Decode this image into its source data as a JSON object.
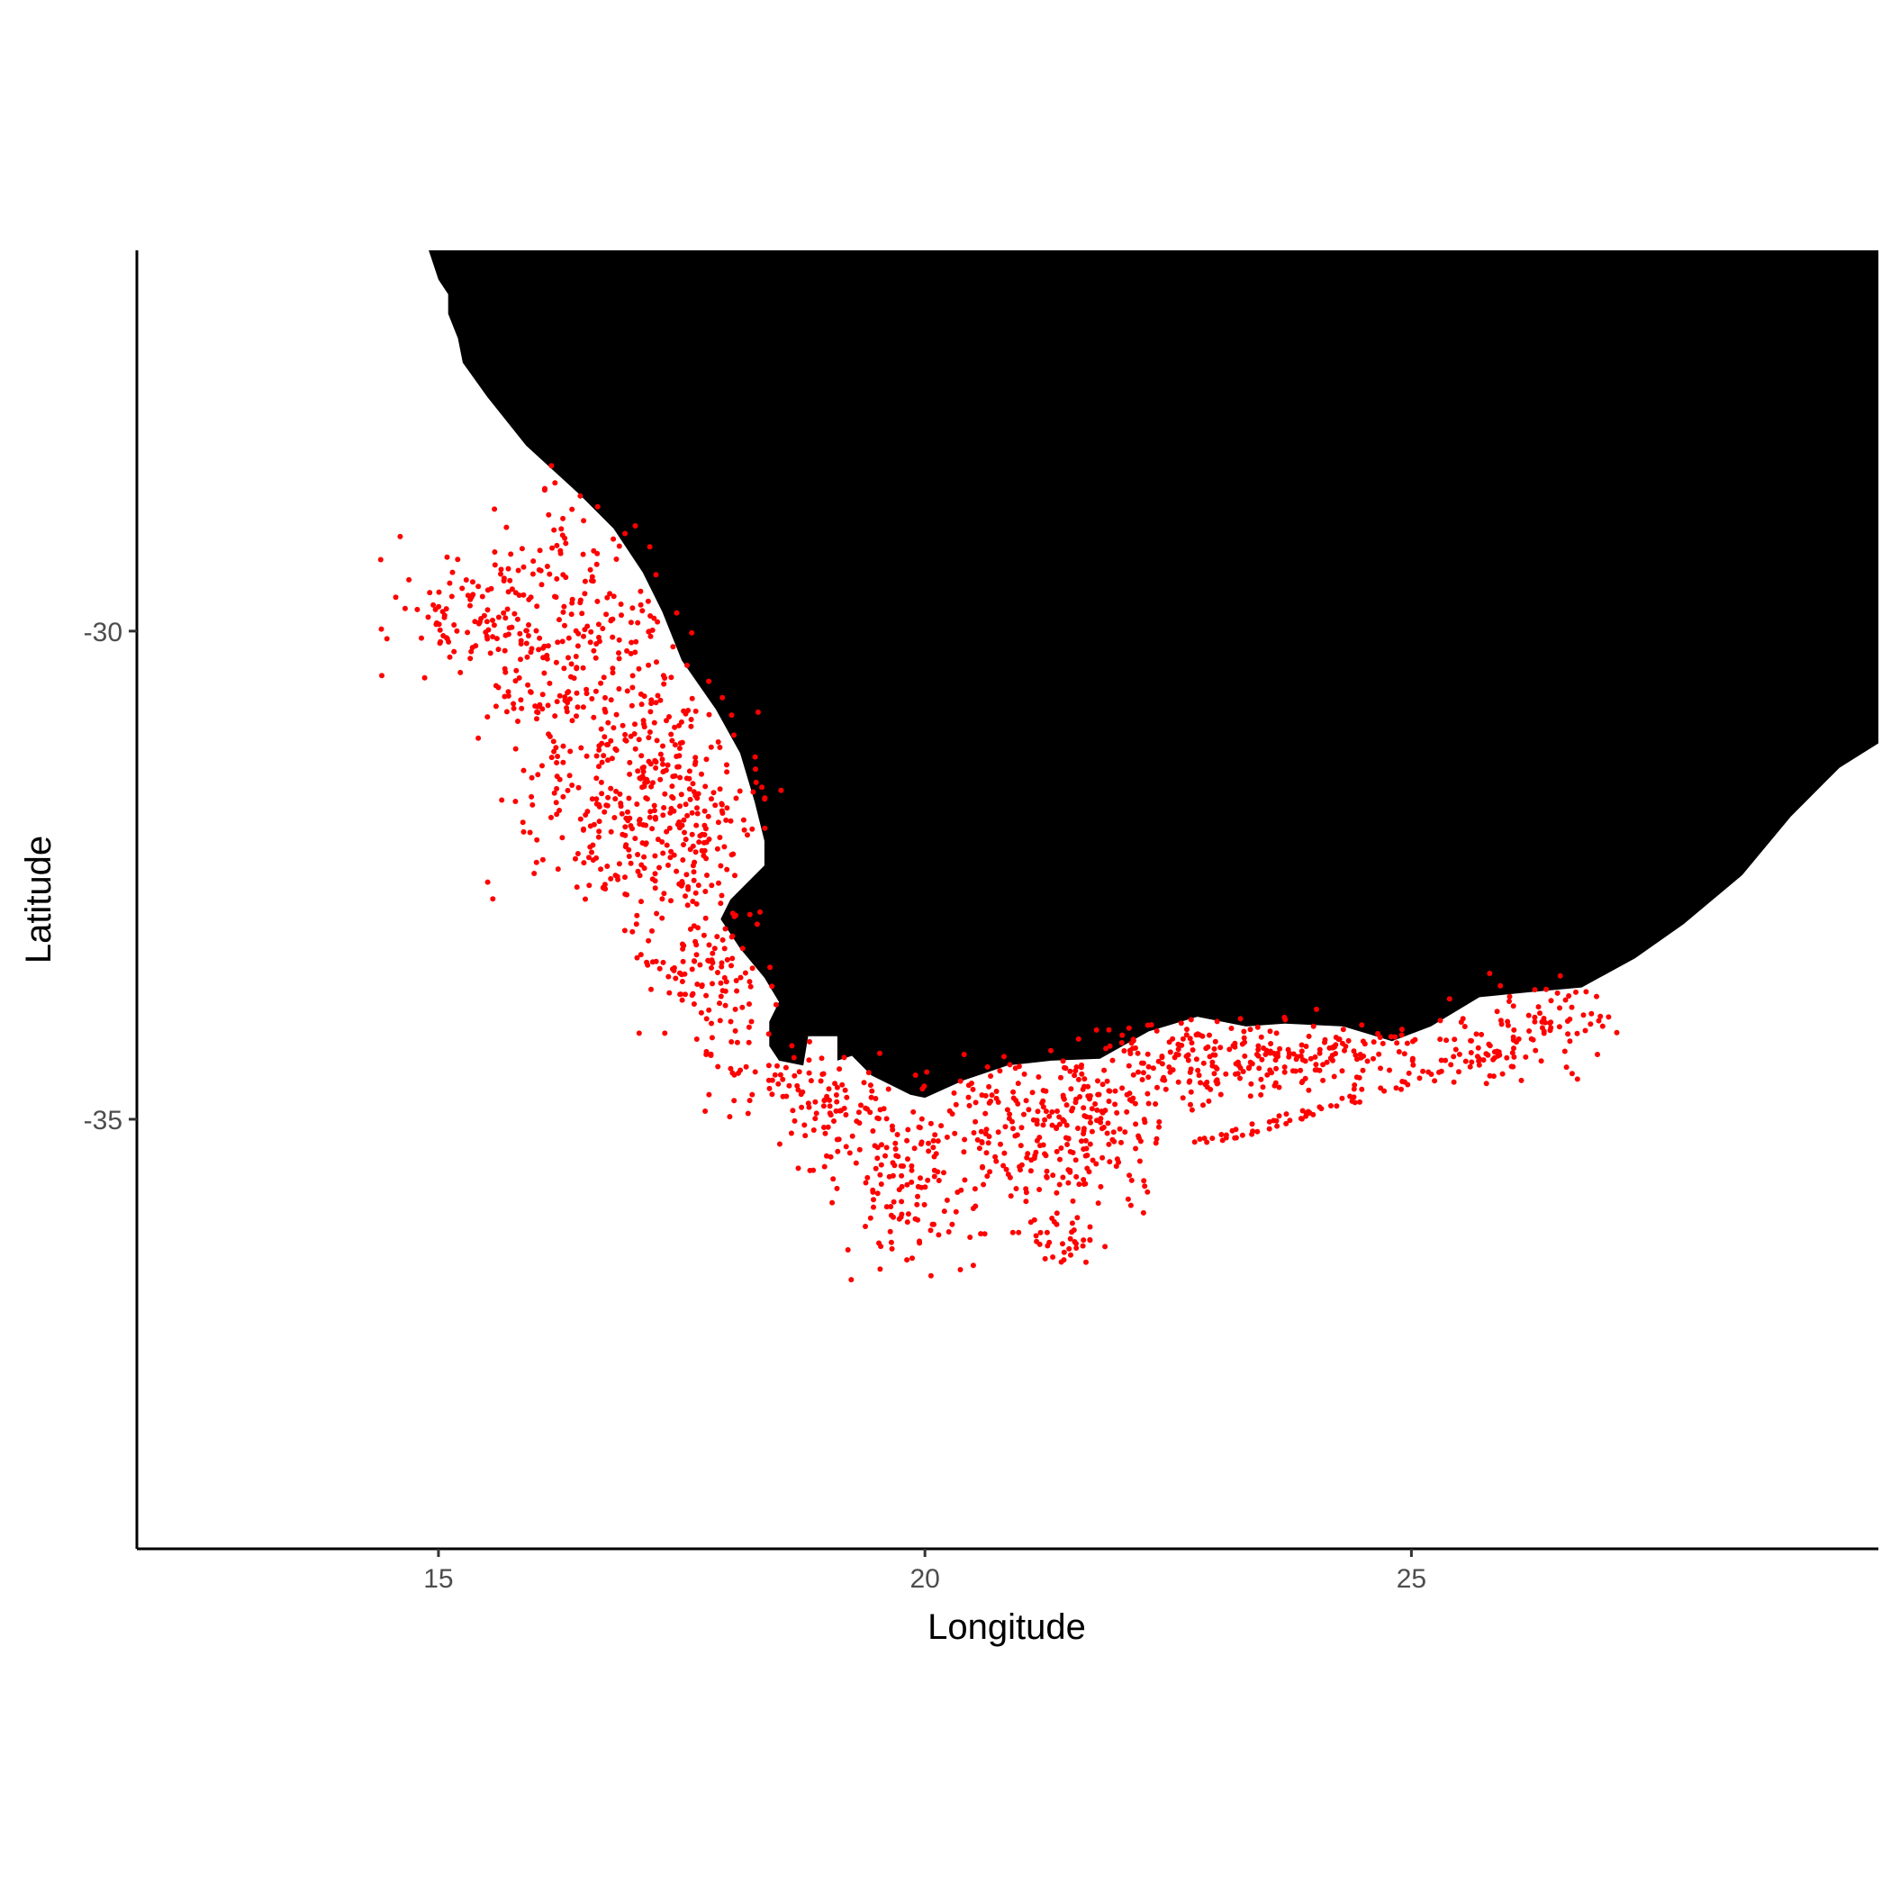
{
  "chart_data": {
    "type": "scatter",
    "title": "",
    "xlabel": "Longitude",
    "ylabel": "Latitude",
    "xlim": [
      11.9,
      29.8
    ],
    "ylim": [
      -39.4,
      -26.1
    ],
    "xticks": [
      15,
      20,
      25
    ],
    "yticks": [
      -30,
      -35
    ],
    "xtick_labels": [
      "15",
      "20",
      "25"
    ],
    "ytick_labels": [
      "-30",
      "-35"
    ],
    "grid": false,
    "legend": "none",
    "colors": {
      "land": "#000000",
      "points": "#ff0000",
      "axis": "#000000",
      "background": "#ffffff"
    },
    "land_outline": [
      [
        14.9,
        -26.1
      ],
      [
        15.0,
        -26.4
      ],
      [
        15.1,
        -26.55
      ],
      [
        15.1,
        -26.75
      ],
      [
        15.2,
        -27.0
      ],
      [
        15.25,
        -27.25
      ],
      [
        15.5,
        -27.6
      ],
      [
        15.9,
        -28.1
      ],
      [
        16.45,
        -28.6
      ],
      [
        16.8,
        -28.95
      ],
      [
        17.1,
        -29.4
      ],
      [
        17.3,
        -29.8
      ],
      [
        17.5,
        -30.3
      ],
      [
        17.85,
        -30.8
      ],
      [
        18.1,
        -31.25
      ],
      [
        18.25,
        -31.75
      ],
      [
        18.35,
        -32.15
      ],
      [
        18.35,
        -32.4
      ],
      [
        18.0,
        -32.75
      ],
      [
        17.9,
        -32.95
      ],
      [
        18.1,
        -33.25
      ],
      [
        18.35,
        -33.55
      ],
      [
        18.5,
        -33.8
      ],
      [
        18.4,
        -34.0
      ],
      [
        18.4,
        -34.25
      ],
      [
        18.5,
        -34.4
      ],
      [
        18.75,
        -34.45
      ],
      [
        18.8,
        -34.15
      ],
      [
        19.1,
        -34.15
      ],
      [
        19.1,
        -34.4
      ],
      [
        19.25,
        -34.35
      ],
      [
        19.45,
        -34.55
      ],
      [
        19.85,
        -34.75
      ],
      [
        20.0,
        -34.78
      ],
      [
        20.4,
        -34.6
      ],
      [
        20.85,
        -34.45
      ],
      [
        21.3,
        -34.4
      ],
      [
        21.8,
        -34.38
      ],
      [
        22.3,
        -34.1
      ],
      [
        22.8,
        -33.95
      ],
      [
        23.3,
        -34.05
      ],
      [
        23.7,
        -34.02
      ],
      [
        24.3,
        -34.05
      ],
      [
        24.8,
        -34.2
      ],
      [
        25.2,
        -34.05
      ],
      [
        25.7,
        -33.75
      ],
      [
        26.2,
        -33.7
      ],
      [
        26.75,
        -33.65
      ],
      [
        27.3,
        -33.35
      ],
      [
        27.8,
        -33.0
      ],
      [
        28.4,
        -32.5
      ],
      [
        28.9,
        -31.9
      ],
      [
        29.4,
        -31.4
      ],
      [
        29.8,
        -31.15
      ],
      [
        29.8,
        -26.1
      ]
    ]
  }
}
